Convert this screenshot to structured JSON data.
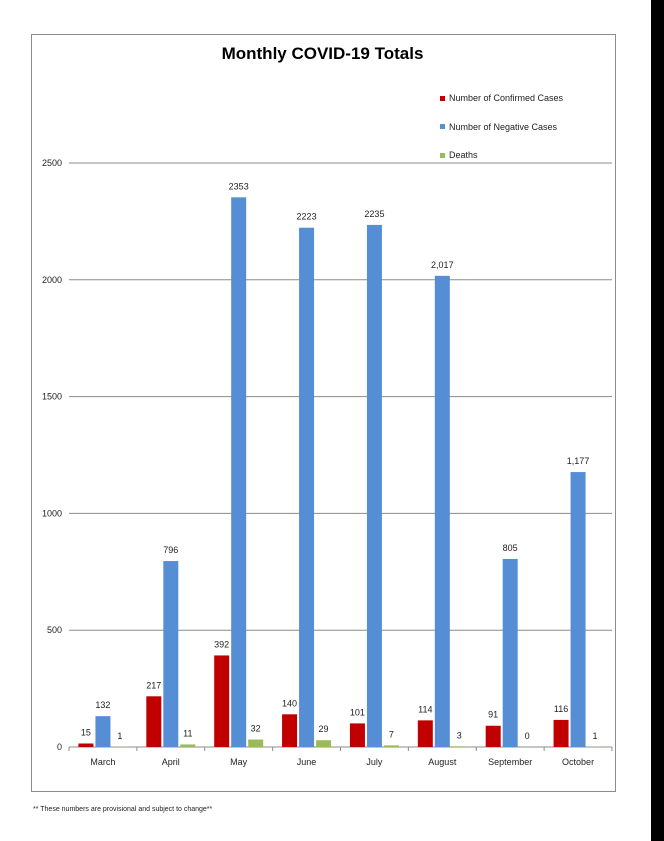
{
  "footnote": "** These numbers are provisional and subject to change**",
  "chart_data": {
    "type": "bar",
    "title": "Monthly COVID-19 Totals",
    "xlabel": "",
    "ylabel": "",
    "ylim": [
      0,
      2500
    ],
    "yticks": [
      "0",
      "500",
      "1000",
      "1500",
      "2000",
      "2500"
    ],
    "grid": true,
    "legend_position": "top-right",
    "categories": [
      "March",
      "April",
      "May",
      "June",
      "July",
      "August",
      "September",
      "October"
    ],
    "series": [
      {
        "name": "Number of Confirmed Cases",
        "color": "#c00000",
        "values": [
          15,
          217,
          392,
          140,
          101,
          114,
          91,
          116
        ],
        "labels": [
          "15",
          "217",
          "392",
          "140",
          "101",
          "114",
          "91",
          "116"
        ]
      },
      {
        "name": "Number of Negative Cases",
        "color": "#558ed5",
        "values": [
          132,
          796,
          2353,
          2223,
          2235,
          2017,
          805,
          1177
        ],
        "labels": [
          "132",
          "796",
          "2353",
          "2223",
          "2235",
          "2,017",
          "805",
          "1,177"
        ]
      },
      {
        "name": "Deaths",
        "color": "#9bbb59",
        "values": [
          1,
          11,
          32,
          29,
          7,
          3,
          0,
          1
        ],
        "labels": [
          "1",
          "11",
          "32",
          "29",
          "7",
          "3",
          "0",
          "1"
        ]
      }
    ]
  }
}
